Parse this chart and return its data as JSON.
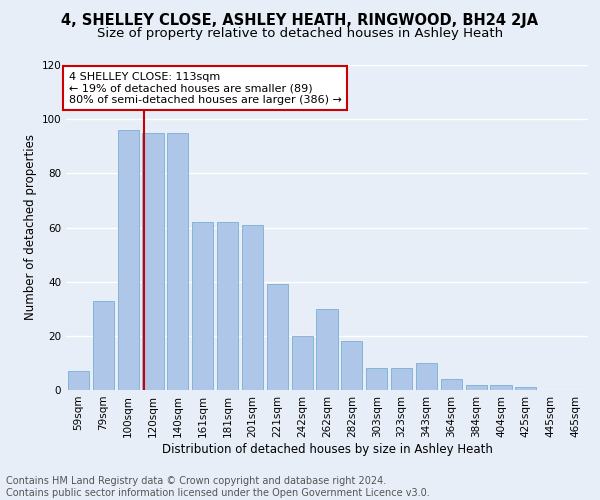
{
  "title": "4, SHELLEY CLOSE, ASHLEY HEATH, RINGWOOD, BH24 2JA",
  "subtitle": "Size of property relative to detached houses in Ashley Heath",
  "xlabel": "Distribution of detached houses by size in Ashley Heath",
  "ylabel": "Number of detached properties",
  "categories": [
    "59sqm",
    "79sqm",
    "100sqm",
    "120sqm",
    "140sqm",
    "161sqm",
    "181sqm",
    "201sqm",
    "221sqm",
    "242sqm",
    "262sqm",
    "282sqm",
    "303sqm",
    "323sqm",
    "343sqm",
    "364sqm",
    "384sqm",
    "404sqm",
    "425sqm",
    "445sqm",
    "465sqm"
  ],
  "values": [
    7,
    33,
    96,
    95,
    95,
    62,
    62,
    61,
    39,
    20,
    30,
    18,
    8,
    8,
    10,
    4,
    2,
    2,
    1,
    0,
    0
  ],
  "bar_color": "#aec6e8",
  "bar_edge_color": "#7aaed4",
  "background_color": "#e8eef7",
  "grid_color": "#ffffff",
  "vline_color": "#cc0000",
  "annotation_text": "4 SHELLEY CLOSE: 113sqm\n← 19% of detached houses are smaller (89)\n80% of semi-detached houses are larger (386) →",
  "annotation_box_color": "#ffffff",
  "annotation_box_edge_color": "#cc0000",
  "ylim": [
    0,
    120
  ],
  "yticks": [
    0,
    20,
    40,
    60,
    80,
    100,
    120
  ],
  "footer_line1": "Contains HM Land Registry data © Crown copyright and database right 2024.",
  "footer_line2": "Contains public sector information licensed under the Open Government Licence v3.0.",
  "title_fontsize": 10.5,
  "subtitle_fontsize": 9.5,
  "axis_label_fontsize": 8.5,
  "tick_fontsize": 7.5,
  "annotation_fontsize": 8,
  "footer_fontsize": 7
}
